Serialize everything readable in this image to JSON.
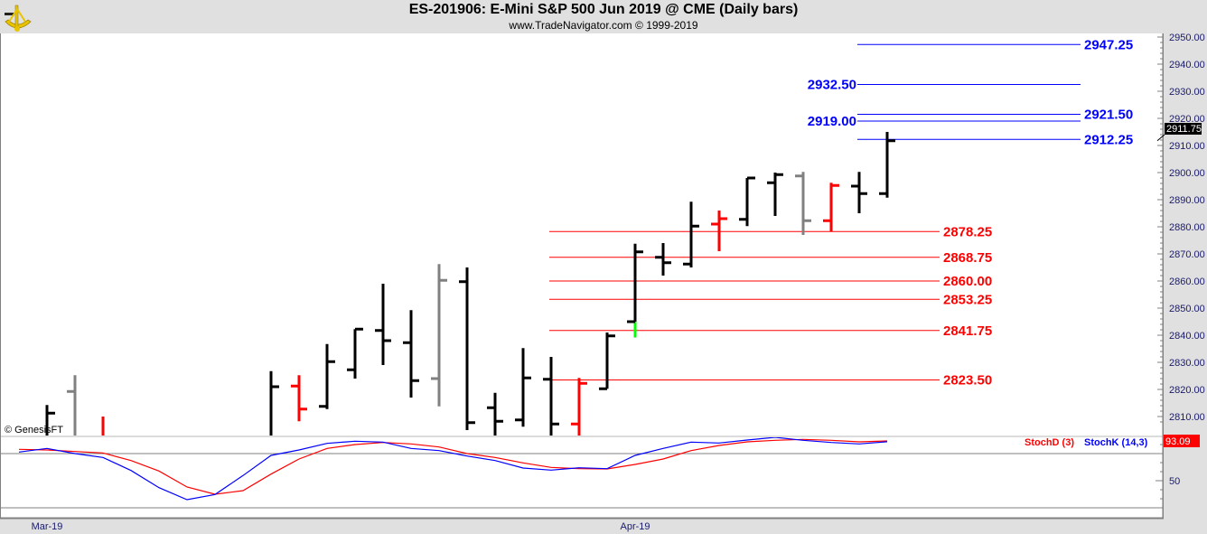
{
  "header": {
    "title": "ES-201906:  E-Mini S&P 500 Jun 2019 @ CME  (Daily bars)",
    "subtitle": "www.TradeNavigator.com © 1999-2019",
    "logo_icon": "sextant-icon"
  },
  "watermark": "© GenesisFT",
  "chart_data": [
    {
      "type": "ohlc",
      "pane": "price",
      "y_axis": {
        "range": [
          2808,
          2951
        ],
        "ticks": [
          2810,
          2820,
          2830,
          2840,
          2850,
          2860,
          2870,
          2880,
          2890,
          2900,
          2910,
          2920,
          2930,
          2940,
          2950
        ],
        "tick_labels": [
          "2810.00",
          "2820.00",
          "2830.00",
          "2840.00",
          "2850.00",
          "2860.00",
          "2870.00",
          "2880.00",
          "2890.00",
          "2900.00",
          "2910.00",
          "2920.00",
          "2930.00",
          "2940.00",
          "2950.00"
        ],
        "position": "right"
      },
      "x_axis": {
        "tick_labels": [
          {
            "bar": 1,
            "label": "Mar-19"
          },
          {
            "bar": 22,
            "label": "Apr-19"
          }
        ]
      },
      "last_price": {
        "value": 2911.75,
        "label": "2911.75"
      },
      "colors": {
        "black": "#000000",
        "red": "#ff0000",
        "gray": "#808080",
        "green": "#00ff00"
      },
      "bars": [
        {
          "o": null,
          "h": null,
          "l": null,
          "c": null,
          "color": "black"
        },
        {
          "o": null,
          "h": 2814.25,
          "l": null,
          "c": 2811.25,
          "color": "black"
        },
        {
          "o": 2819.25,
          "h": 2825.25,
          "l": null,
          "c": null,
          "color": "gray"
        },
        {
          "o": null,
          "h": 2810.0,
          "l": null,
          "c": null,
          "color": "red"
        },
        {
          "o": null,
          "h": null,
          "l": null,
          "c": null,
          "color": "black"
        },
        {
          "o": null,
          "h": null,
          "l": null,
          "c": null,
          "color": "black"
        },
        {
          "o": null,
          "h": null,
          "l": null,
          "c": null,
          "color": "black"
        },
        {
          "o": null,
          "h": null,
          "l": null,
          "c": null,
          "color": "black"
        },
        {
          "o": null,
          "h": null,
          "l": null,
          "c": null,
          "color": "black"
        },
        {
          "o": null,
          "h": 2826.75,
          "l": null,
          "c": 2821.0,
          "color": "black"
        },
        {
          "o": 2821.25,
          "h": 2825.25,
          "l": 2808.25,
          "c": 2812.75,
          "color": "red"
        },
        {
          "o": 2813.75,
          "h": 2836.75,
          "l": 2812.75,
          "c": 2830.25,
          "color": "black"
        },
        {
          "o": 2827.25,
          "h": 2842.25,
          "l": 2824.0,
          "c": 2842.25,
          "color": "black"
        },
        {
          "o": 2841.75,
          "h": 2859.0,
          "l": 2829.0,
          "c": 2838.0,
          "color": "black"
        },
        {
          "o": 2837.25,
          "h": 2849.25,
          "l": 2817.0,
          "c": 2823.25,
          "color": "black"
        },
        {
          "o": 2824.0,
          "h": 2866.25,
          "l": 2813.75,
          "c": 2860.25,
          "color": "gray"
        },
        {
          "o": 2859.75,
          "h": 2865.0,
          "l": 2805.0,
          "c": 2807.75,
          "color": "black"
        },
        {
          "o": 2813.25,
          "h": 2818.75,
          "l": null,
          "c": 2808.25,
          "color": "black"
        },
        {
          "o": 2808.75,
          "h": 2835.25,
          "l": 2806.25,
          "c": 2824.25,
          "color": "black"
        },
        {
          "o": 2823.75,
          "h": 2832.0,
          "l": null,
          "c": 2807.25,
          "color": "black"
        },
        {
          "o": 2807.25,
          "h": 2824.25,
          "l": null,
          "c": 2822.25,
          "color": "red"
        },
        {
          "o": 2820.25,
          "h": 2841.0,
          "l": 2820.25,
          "c": 2839.75,
          "color": "black"
        },
        {
          "o": 2845.0,
          "h": 2873.75,
          "l": 2839.25,
          "c": 2870.75,
          "color": "black",
          "low_segment_color": "green"
        },
        {
          "o": 2868.75,
          "h": 2874.0,
          "l": 2862.0,
          "c": 2866.75,
          "color": "black"
        },
        {
          "o": 2866.25,
          "h": 2889.25,
          "l": 2865.0,
          "c": 2880.25,
          "color": "black"
        },
        {
          "o": 2881.0,
          "h": 2886.0,
          "l": 2871.0,
          "c": 2883.0,
          "color": "red"
        },
        {
          "o": 2882.75,
          "h": 2898.0,
          "l": 2880.25,
          "c": 2898.0,
          "color": "black"
        },
        {
          "o": 2896.25,
          "h": 2900.0,
          "l": 2884.0,
          "c": 2899.25,
          "color": "black"
        },
        {
          "o": 2898.75,
          "h": 2900.25,
          "l": 2877.0,
          "c": 2882.25,
          "color": "gray"
        },
        {
          "o": 2882.25,
          "h": 2896.25,
          "l": 2878.25,
          "c": 2895.25,
          "color": "red"
        },
        {
          "o": 2895.0,
          "h": 2900.25,
          "l": 2885.0,
          "c": 2892.25,
          "color": "black"
        },
        {
          "o": 2892.25,
          "h": 2915.0,
          "l": 2890.75,
          "c": 2911.75,
          "color": "black"
        }
      ],
      "levels": [
        {
          "value": 2947.25,
          "label": "2947.25",
          "color": "#0000ff",
          "label_side": "right"
        },
        {
          "value": 2932.5,
          "label": "2932.50",
          "color": "#0000ff",
          "label_side": "left"
        },
        {
          "value": 2921.5,
          "label": "2921.50",
          "color": "#0000ff",
          "label_side": "right"
        },
        {
          "value": 2919.0,
          "label": "2919.00",
          "color": "#0000ff",
          "label_side": "left"
        },
        {
          "value": 2912.25,
          "label": "2912.25",
          "color": "#0000ff",
          "label_side": "right"
        },
        {
          "value": 2878.25,
          "label": "2878.25",
          "color": "#ff0000",
          "label_side": "right"
        },
        {
          "value": 2868.75,
          "label": "2868.75",
          "color": "#ff0000",
          "label_side": "right"
        },
        {
          "value": 2860.0,
          "label": "2860.00",
          "color": "#ff0000",
          "label_side": "right"
        },
        {
          "value": 2853.25,
          "label": "2853.25",
          "color": "#ff0000",
          "label_side": "right"
        },
        {
          "value": 2841.75,
          "label": "2841.75",
          "color": "#ff0000",
          "label_side": "right"
        },
        {
          "value": 2823.5,
          "label": "2823.50",
          "color": "#ff0000",
          "label_side": "right"
        }
      ]
    },
    {
      "type": "line",
      "pane": "stochastic",
      "y_axis": {
        "range": [
          9,
          98
        ],
        "reference_lines": [
          80,
          20
        ],
        "tick_labels": [
          {
            "value": 50,
            "label": "50"
          }
        ]
      },
      "last_value": {
        "value": 93.09,
        "label": "93.09",
        "color": "#ff0000"
      },
      "series": [
        {
          "name": "StochD (3)",
          "color": "#ff0000",
          "values": [
            84.7,
            84,
            82.3,
            80.7,
            72.3,
            60.7,
            43,
            35,
            39,
            57.3,
            74,
            85.7,
            90,
            92.3,
            90.7,
            87.3,
            80,
            75.7,
            69.7,
            64.7,
            63.3,
            63,
            68,
            74,
            83.3,
            89,
            93,
            94.7,
            95.7,
            94.7,
            93,
            94
          ]
        },
        {
          "name": "StochK (14,3)",
          "color": "#0000ff",
          "values": [
            81.7,
            85.7,
            80,
            75.7,
            61.3,
            42.3,
            29,
            34.7,
            55.7,
            78,
            84,
            91.3,
            93.7,
            92.7,
            85.7,
            83.3,
            77.3,
            72.3,
            64,
            61.7,
            64.3,
            63.3,
            78,
            85.7,
            92.7,
            91.7,
            95,
            98,
            94.7,
            92.3,
            90.7,
            93.1
          ]
        }
      ],
      "legend": "top-right"
    }
  ]
}
